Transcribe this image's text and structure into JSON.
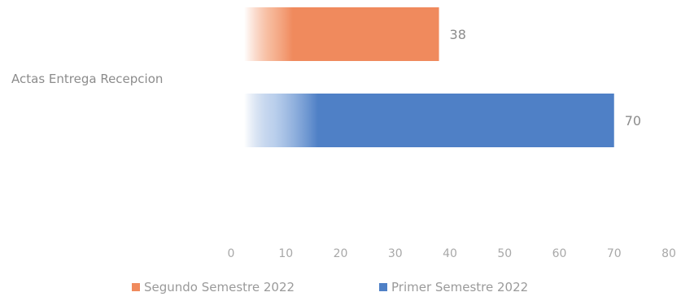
{
  "chart_data": {
    "type": "bar",
    "orientation": "horizontal",
    "categories": [
      "Actas Entrega Recepcion"
    ],
    "series": [
      {
        "name": "Segundo Semestre 2022",
        "values": [
          38
        ],
        "color": "#f08a5d"
      },
      {
        "name": "Primer Semestre 2022",
        "values": [
          70
        ],
        "color": "#4f80c6"
      }
    ],
    "data_labels": [
      "38",
      "70"
    ],
    "xlim": [
      0,
      80
    ],
    "x_ticks": [
      "0",
      "10",
      "20",
      "30",
      "40",
      "50",
      "60",
      "70",
      "80"
    ],
    "grid": false,
    "legend_position": "bottom"
  }
}
